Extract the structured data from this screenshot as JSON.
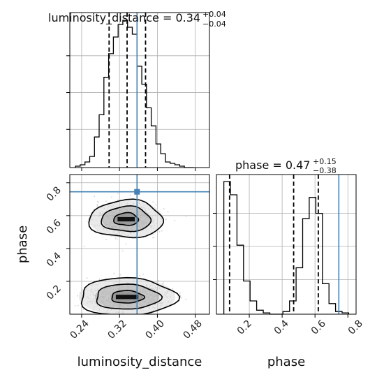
{
  "chart_data": {
    "type": "corner",
    "parameters": [
      "luminosity_distance",
      "phase"
    ],
    "truths": {
      "luminosity_distance": 0.357,
      "phase": 0.745
    },
    "titles": {
      "luminosity_distance": {
        "text": "luminosity_distance = 0.34",
        "upper": "+0.04",
        "lower": "−0.04"
      },
      "phase": {
        "text": "phase = 0.47",
        "upper": "+0.15",
        "lower": "−0.38"
      }
    },
    "marginals": {
      "luminosity_distance": {
        "range": [
          0.215,
          0.51
        ],
        "quantiles": [
          0.298,
          0.336,
          0.375
        ],
        "bin_edges": [
          0.227,
          0.237,
          0.247,
          0.257,
          0.267,
          0.277,
          0.287,
          0.297,
          0.307,
          0.317,
          0.327,
          0.337,
          0.347,
          0.357,
          0.367,
          0.377,
          0.387,
          0.397,
          0.407,
          0.417,
          0.427,
          0.437,
          0.447,
          0.457,
          0.467,
          0.477
        ],
        "counts": [
          1,
          2,
          4,
          8,
          22,
          38,
          65,
          82,
          94,
          103,
          106,
          101,
          96,
          73,
          60,
          43,
          30,
          17,
          10,
          4,
          3,
          2,
          1,
          0,
          0
        ]
      },
      "phase": {
        "range": [
          0.0,
          0.85
        ],
        "quantiles": [
          0.08,
          0.47,
          0.62
        ],
        "bin_edges": [
          0.045,
          0.085,
          0.125,
          0.165,
          0.205,
          0.245,
          0.285,
          0.325,
          0.365,
          0.405,
          0.445,
          0.485,
          0.525,
          0.565,
          0.605,
          0.645,
          0.685,
          0.725,
          0.765,
          0.805
        ],
        "counts": [
          100,
          90,
          52,
          25,
          10,
          3,
          1,
          0,
          0,
          2,
          10,
          35,
          72,
          88,
          76,
          23,
          8,
          2,
          1
        ]
      }
    },
    "contour_2d": {
      "x": "luminosity_distance",
      "y": "phase",
      "modes": [
        {
          "x": 0.334,
          "y": 0.578,
          "sigma_x": 0.026,
          "sigma_y": 0.038,
          "weight": 0.5
        },
        {
          "x": 0.336,
          "y": 0.105,
          "sigma_x": 0.034,
          "sigma_y": 0.038,
          "weight": 0.5
        }
      ],
      "levels": [
        0.393,
        0.865,
        0.989
      ]
    },
    "xticks": {
      "luminosity_distance": [
        "0.24",
        "0.32",
        "0.40",
        "0.48"
      ],
      "phase": [
        "0.2",
        "0.4",
        "0.6",
        "0.8"
      ]
    },
    "yticks": {
      "phase": [
        "0.2",
        "0.4",
        "0.6",
        "0.8"
      ]
    },
    "xlabels": {
      "luminosity_distance": "luminosity_distance",
      "phase": "phase"
    },
    "ylabels": {
      "phase": "phase"
    },
    "grid": true,
    "colors": {
      "line": "#000000",
      "truth": "#4682b4",
      "grid": "#b0b0b0",
      "points": "#b0b0b0"
    }
  }
}
